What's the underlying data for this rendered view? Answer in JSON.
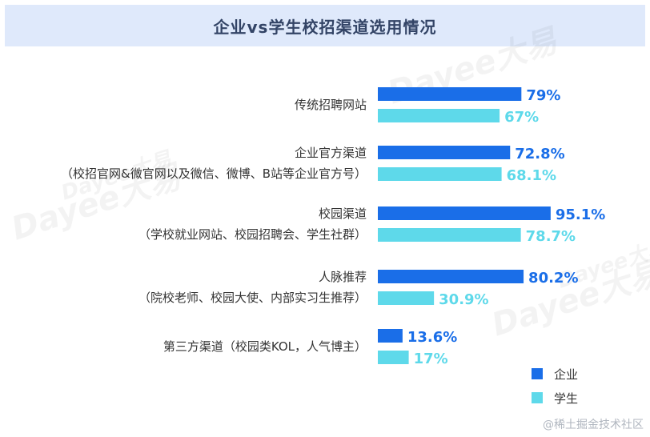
{
  "chart_data": {
    "type": "bar",
    "orientation": "horizontal",
    "title": "企业vs学生校招渠道选用情况",
    "categories": [
      [
        "传统招聘网站"
      ],
      [
        "企业官方渠道",
        "（校招官网&微官网以及微信、微博、B站等企业官方号）"
      ],
      [
        "校园渠道",
        "（学校就业网站、校园招聘会、学生社群）"
      ],
      [
        "人脉推荐",
        "（院校老师、校园大使、内部实习生推荐）"
      ],
      [
        "第三方渠道（校园类KOL，人气博主）"
      ]
    ],
    "series": [
      {
        "name": "企业",
        "color": "#1a6ee8",
        "values": [
          79,
          72.8,
          95.1,
          80.2,
          13.6
        ],
        "labels": [
          "79%",
          "72.8%",
          "95.1%",
          "80.2%",
          "13.6%"
        ]
      },
      {
        "name": "学生",
        "color": "#5ed9ea",
        "values": [
          67,
          68.1,
          78.7,
          30.9,
          17
        ],
        "labels": [
          "67%",
          "68.1%",
          "78.7%",
          "30.9%",
          "17%"
        ]
      }
    ],
    "xlim": [
      0,
      100
    ],
    "grid": false,
    "legend_position": "bottom-right"
  },
  "watermark": {
    "brand": "Dayee大易"
  },
  "credit": "@稀土掘金技术社区"
}
